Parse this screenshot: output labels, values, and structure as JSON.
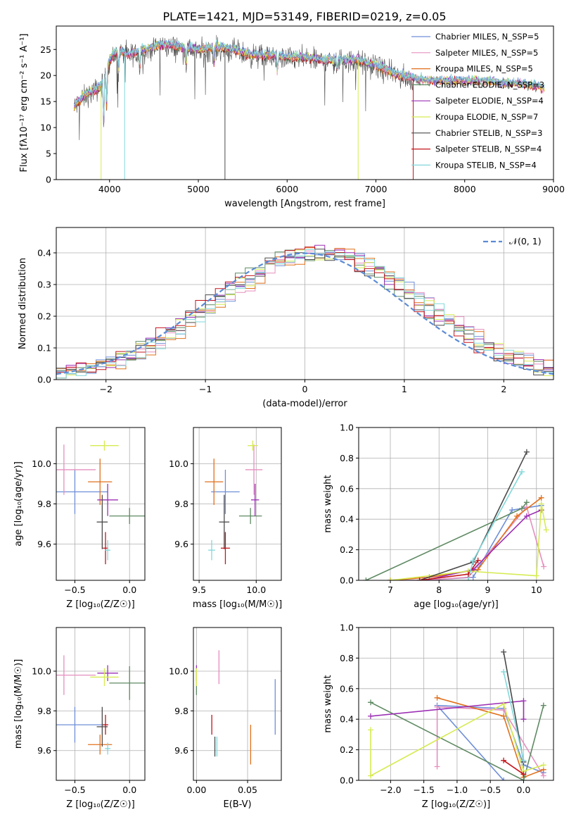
{
  "figure": {
    "title": "PLATE=1421, MJD=53149, FIBERID=0219, z=0.05"
  },
  "colors": {
    "chabrier_miles": "#6f8fd8",
    "salpeter_miles": "#e58fbf",
    "kroupa_miles": "#e0701b",
    "chabrier_elodie": "#5f8a63",
    "salpeter_elodie": "#9b2fb4",
    "kroupa_elodie": "#d7eb52",
    "chabrier_stelib": "#4a4a4a",
    "salpeter_stelib": "#c4151c",
    "kroupa_stelib": "#82d8db"
  },
  "chart_data": [
    {
      "id": "spectrum",
      "type": "line",
      "title": "PLATE=1421, MJD=53149, FIBERID=0219, z=0.05",
      "xlabel": "wavelength [Angstrom, rest frame]",
      "ylabel": "Flux [fλ10⁻¹⁷ erg cm⁻² s⁻¹ A⁻¹]",
      "xlim": [
        3400,
        9000
      ],
      "ylim": [
        0,
        29.5
      ],
      "xticks": [
        4000,
        5000,
        6000,
        7000,
        8000,
        9000
      ],
      "yticks": [
        0,
        5,
        10,
        15,
        20,
        25
      ],
      "grid": false,
      "legend_position": "top-right",
      "legend": [
        "Chabrier MILES, N_SSP=5",
        "Salpeter MILES, N_SSP=5",
        "Kroupa MILES, N_SSP=5",
        "Chabrier ELODIE, N_SSP=3",
        "Salpeter ELODIE, N_SSP=4",
        "Kroupa ELODIE, N_SSP=7",
        "Chabrier STELIB, N_SSP=3",
        "Salpeter STELIB, N_SSP=4",
        "Kroupa STELIB, N_SSP=4"
      ],
      "continuum": {
        "x": [
          3600,
          3700,
          3800,
          3900,
          4000,
          4100,
          4200,
          4300,
          4400,
          4600,
          4800,
          5000,
          5200,
          5400,
          5600,
          5800,
          6000,
          6200,
          6400,
          6600,
          6800,
          7000,
          7200,
          7400,
          7600,
          7800,
          8000,
          8200,
          8400,
          8600,
          8800,
          8900
        ],
        "y": [
          14,
          16,
          17,
          18,
          23,
          25,
          24,
          24.5,
          25,
          26,
          25.5,
          25,
          25.5,
          25,
          24,
          24,
          23.5,
          23.5,
          23,
          23,
          23,
          22,
          20.5,
          19.5,
          19,
          19,
          19,
          19,
          18.5,
          18.5,
          18,
          17.5
        ]
      },
      "data_x_range": [
        3600,
        7400
      ],
      "models_x_range": [
        3600,
        8900
      ]
    },
    {
      "id": "residuals",
      "type": "line",
      "xlabel": "(data-model)/error",
      "ylabel": "Normed distribution",
      "xlim": [
        -2.5,
        2.5
      ],
      "ylim": [
        0,
        0.48
      ],
      "xticks": [
        -2,
        -1,
        0,
        1,
        2
      ],
      "yticks": [
        0.0,
        0.1,
        0.2,
        0.3,
        0.4
      ],
      "grid": true,
      "legend_position": "top-right",
      "legend": [
        "𝒩(0, 1)"
      ],
      "bin_width": 0.1,
      "series_style": "step-histogram"
    },
    {
      "id": "age_vs_Z",
      "type": "scatter",
      "xlabel": "Z [log₁₀(Z/Z☉)]",
      "ylabel": "age  [log₁₀(age/yr)]",
      "xlim": [
        -0.67,
        0.14
      ],
      "ylim": [
        9.42,
        10.18
      ],
      "xticks": [
        -0.5,
        0.0
      ],
      "yticks": [
        9.6,
        9.8,
        10.0
      ],
      "grid": true,
      "points": [
        {
          "model": "chabrier_miles",
          "x": -0.5,
          "xerr": 0.6,
          "y": 9.86,
          "yerr": 0.22
        },
        {
          "model": "salpeter_miles",
          "x": -0.6,
          "xerr": 0.58,
          "y": 9.97,
          "yerr": 0.25
        },
        {
          "model": "kroupa_miles",
          "x": -0.27,
          "xerr": 0.22,
          "y": 9.91,
          "yerr": 0.23
        },
        {
          "model": "chabrier_elodie",
          "x": 0.0,
          "xerr": 0.37,
          "y": 9.74,
          "yerr": 0.08
        },
        {
          "model": "salpeter_elodie",
          "x": -0.2,
          "xerr": 0.19,
          "y": 9.82,
          "yerr": 0.16
        },
        {
          "model": "kroupa_elodie",
          "x": -0.23,
          "xerr": 0.26,
          "y": 10.09,
          "yerr": 0.05
        },
        {
          "model": "chabrier_stelib",
          "x": -0.25,
          "xerr": 0.1,
          "y": 9.71,
          "yerr": 0.27
        },
        {
          "model": "salpeter_stelib",
          "x": -0.22,
          "xerr": 0.05,
          "y": 9.58,
          "yerr": 0.16
        },
        {
          "model": "kroupa_stelib",
          "x": -0.2,
          "xerr": 0.05,
          "y": 9.57,
          "yerr": 0.1
        }
      ]
    },
    {
      "id": "age_vs_mass",
      "type": "scatter",
      "xlabel": "mass [log₁₀(M/M☉)]",
      "xlim": [
        9.45,
        10.22
      ],
      "ylim": [
        9.42,
        10.18
      ],
      "xticks": [
        9.5,
        10.0
      ],
      "yticks": [
        9.6,
        9.8,
        10.0
      ],
      "grid": true,
      "points": [
        {
          "model": "chabrier_miles",
          "x": 9.73,
          "xerr": 0.25,
          "y": 9.86,
          "yerr": 0.22
        },
        {
          "model": "salpeter_miles",
          "x": 9.98,
          "xerr": 0.15,
          "y": 9.97,
          "yerr": 0.25
        },
        {
          "model": "kroupa_miles",
          "x": 9.63,
          "xerr": 0.16,
          "y": 9.91,
          "yerr": 0.23
        },
        {
          "model": "chabrier_elodie",
          "x": 9.95,
          "xerr": 0.2,
          "y": 9.74,
          "yerr": 0.08
        },
        {
          "model": "salpeter_elodie",
          "x": 9.99,
          "xerr": 0.07,
          "y": 9.82,
          "yerr": 0.16
        },
        {
          "model": "kroupa_elodie",
          "x": 9.97,
          "xerr": 0.09,
          "y": 10.09,
          "yerr": 0.05
        },
        {
          "model": "chabrier_stelib",
          "x": 9.72,
          "xerr": 0.09,
          "y": 9.71,
          "yerr": 0.27
        },
        {
          "model": "salpeter_stelib",
          "x": 9.73,
          "xerr": 0.08,
          "y": 9.58,
          "yerr": 0.16
        },
        {
          "model": "kroupa_stelib",
          "x": 9.61,
          "xerr": 0.06,
          "y": 9.57,
          "yerr": 0.1
        }
      ]
    },
    {
      "id": "massweight_vs_age",
      "type": "line",
      "xlabel": "age  [log₁₀(age/yr)]",
      "ylabel": "mass weight",
      "xlim": [
        6.35,
        10.35
      ],
      "ylim": [
        0.0,
        1.0
      ],
      "xticks": [
        7,
        8,
        9,
        10
      ],
      "yticks": [
        0.0,
        0.2,
        0.4,
        0.6,
        0.8,
        1.0
      ],
      "grid": true,
      "series": [
        {
          "model": "chabrier_miles",
          "x": [
            7.0,
            7.7,
            8.7,
            9.5,
            10.1
          ],
          "y": [
            0.0,
            0.0,
            0.02,
            0.46,
            0.49
          ]
        },
        {
          "model": "salpeter_miles",
          "x": [
            7.0,
            7.7,
            8.6,
            9.8,
            10.15
          ],
          "y": [
            0.0,
            0.0,
            0.02,
            0.48,
            0.09
          ]
        },
        {
          "model": "kroupa_miles",
          "x": [
            7.0,
            7.8,
            8.8,
            9.6,
            10.1
          ],
          "y": [
            0.0,
            0.02,
            0.07,
            0.42,
            0.54
          ]
        },
        {
          "model": "chabrier_elodie",
          "x": [
            6.5,
            9.7,
            9.8
          ],
          "y": [
            0.0,
            0.47,
            0.51
          ]
        },
        {
          "model": "salpeter_elodie",
          "x": [
            7.7,
            8.7,
            9.8,
            10.1
          ],
          "y": [
            0.0,
            0.07,
            0.42,
            0.46
          ]
        },
        {
          "model": "kroupa_elodie",
          "x": [
            7.0,
            8.6,
            10.0,
            10.1,
            10.2
          ],
          "y": [
            0.0,
            0.06,
            0.03,
            0.5,
            0.33
          ]
        },
        {
          "model": "chabrier_stelib",
          "x": [
            7.6,
            8.7,
            9.8
          ],
          "y": [
            0.0,
            0.12,
            0.84
          ]
        },
        {
          "model": "salpeter_stelib",
          "x": [
            7.6,
            8.6,
            8.8
          ],
          "y": [
            0.0,
            0.04,
            0.13
          ]
        },
        {
          "model": "kroupa_stelib",
          "x": [
            8.6,
            8.7,
            9.7
          ],
          "y": [
            0.0,
            0.13,
            0.71
          ]
        }
      ]
    },
    {
      "id": "mass_vs_Z",
      "type": "scatter",
      "xlabel": "Z [log₁₀(Z/Z☉)]",
      "ylabel": "mass [log₁₀(M/M☉)]",
      "xlim": [
        -0.67,
        0.14
      ],
      "ylim": [
        9.45,
        10.22
      ],
      "xticks": [
        -0.5,
        0.0
      ],
      "yticks": [
        9.6,
        9.8,
        10.0
      ],
      "grid": true,
      "points": [
        {
          "model": "chabrier_miles",
          "x": -0.5,
          "xerr": 0.6,
          "y": 9.73,
          "yerr": 0.18
        },
        {
          "model": "salpeter_miles",
          "x": -0.6,
          "xerr": 0.58,
          "y": 9.98,
          "yerr": 0.2
        },
        {
          "model": "kroupa_miles",
          "x": -0.27,
          "xerr": 0.22,
          "y": 9.63,
          "yerr": 0.1
        },
        {
          "model": "chabrier_elodie",
          "x": 0.0,
          "xerr": 0.37,
          "y": 9.94,
          "yerr": 0.17
        },
        {
          "model": "salpeter_elodie",
          "x": -0.2,
          "xerr": 0.19,
          "y": 9.99,
          "yerr": 0.08
        },
        {
          "model": "kroupa_elodie",
          "x": -0.23,
          "xerr": 0.26,
          "y": 9.97,
          "yerr": 0.09
        },
        {
          "model": "chabrier_stelib",
          "x": -0.25,
          "xerr": 0.1,
          "y": 9.72,
          "yerr": 0.2
        },
        {
          "model": "salpeter_stelib",
          "x": -0.22,
          "xerr": 0.05,
          "y": 9.73,
          "yerr": 0.1
        },
        {
          "model": "kroupa_stelib",
          "x": -0.2,
          "xerr": 0.05,
          "y": 9.61,
          "yerr": 0.06
        }
      ]
    },
    {
      "id": "mass_vs_ebv",
      "type": "scatter",
      "xlabel": "E(B-V)",
      "xlim": [
        -0.003,
        0.083
      ],
      "ylim": [
        9.45,
        10.22
      ],
      "xticks": [
        0.0,
        0.05
      ],
      "yticks": [
        9.6,
        9.8,
        10.0
      ],
      "grid": true,
      "points": [
        {
          "model": "chabrier_miles",
          "x": 0.077,
          "y": 9.82,
          "yerr": 0.28
        },
        {
          "model": "salpeter_miles",
          "x": 0.022,
          "y": 10.02,
          "yerr": 0.17
        },
        {
          "model": "kroupa_miles",
          "x": 0.053,
          "y": 9.63,
          "yerr": 0.2
        },
        {
          "model": "chabrier_elodie",
          "x": 0.0,
          "y": 9.94,
          "yerr": 0.12
        },
        {
          "model": "salpeter_elodie",
          "x": 0.0,
          "y": 9.99,
          "yerr": 0.08
        },
        {
          "model": "kroupa_elodie",
          "x": 0.0,
          "y": 9.97,
          "yerr": 0.09
        },
        {
          "model": "chabrier_stelib",
          "x": 0.018,
          "y": 9.62,
          "yerr": 0.1
        },
        {
          "model": "salpeter_stelib",
          "x": 0.015,
          "y": 9.73,
          "yerr": 0.1
        },
        {
          "model": "kroupa_stelib",
          "x": 0.02,
          "y": 9.62,
          "yerr": 0.1
        }
      ]
    },
    {
      "id": "massweight_vs_Z",
      "type": "line",
      "xlabel": "Z [log₁₀(Z/Z☉)]",
      "ylabel": "mass weight",
      "xlim": [
        -2.48,
        0.45
      ],
      "ylim": [
        0.0,
        1.0
      ],
      "xticks": [
        -2.0,
        -1.5,
        -1.0,
        -0.5,
        0.0
      ],
      "yticks": [
        0.0,
        0.2,
        0.4,
        0.6,
        0.8,
        1.0
      ],
      "grid": true,
      "series": [
        {
          "model": "chabrier_miles",
          "x": [
            -0.3,
            -1.3,
            -0.3,
            0.0,
            0.3
          ],
          "y": [
            0.0,
            0.49,
            0.47,
            0.1,
            0.05
          ]
        },
        {
          "model": "salpeter_miles",
          "x": [
            -1.3,
            -1.3,
            -0.3,
            0.3
          ],
          "y": [
            0.09,
            0.48,
            0.46,
            0.03
          ]
        },
        {
          "model": "kroupa_miles",
          "x": [
            -1.3,
            -0.3,
            0.0,
            0.3
          ],
          "y": [
            0.54,
            0.42,
            0.02,
            0.07
          ]
        },
        {
          "model": "chabrier_elodie",
          "x": [
            -2.3,
            0.0,
            0.3
          ],
          "y": [
            0.51,
            0.0,
            0.49
          ]
        },
        {
          "model": "salpeter_elodie",
          "x": [
            -2.3,
            0.0,
            0.0
          ],
          "y": [
            0.42,
            0.52,
            0.4
          ]
        },
        {
          "model": "kroupa_elodie",
          "x": [
            -2.3,
            -2.3,
            -0.3,
            0.0,
            0.3
          ],
          "y": [
            0.33,
            0.03,
            0.5,
            0.06,
            0.1
          ]
        },
        {
          "model": "chabrier_stelib",
          "x": [
            -0.3,
            0.0
          ],
          "y": [
            0.84,
            0.12
          ]
        },
        {
          "model": "salpeter_stelib",
          "x": [
            -0.3,
            0.0
          ],
          "y": [
            0.13,
            0.04
          ]
        },
        {
          "model": "kroupa_stelib",
          "x": [
            -0.3,
            0.0
          ],
          "y": [
            0.71,
            0.13
          ]
        }
      ]
    }
  ]
}
